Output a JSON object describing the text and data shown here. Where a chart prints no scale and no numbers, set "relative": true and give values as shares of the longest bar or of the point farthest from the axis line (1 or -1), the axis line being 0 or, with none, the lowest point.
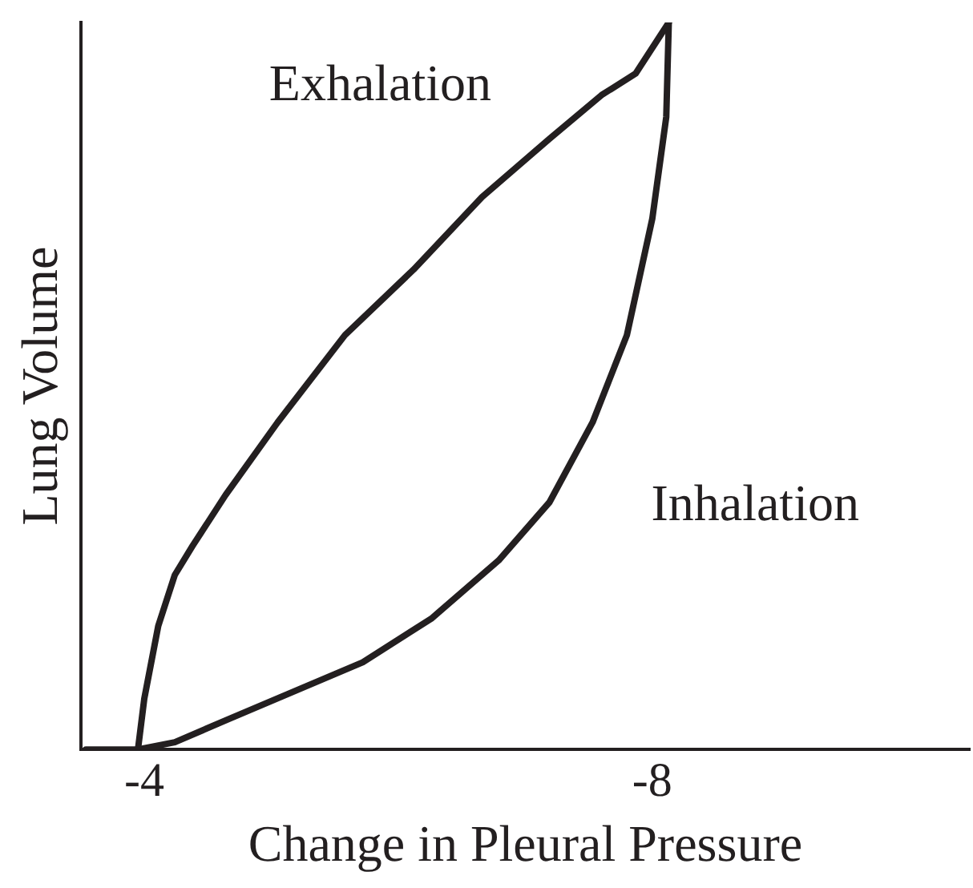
{
  "chart_data": {
    "type": "line",
    "xlabel": "Change in Pleural Pressure",
    "ylabel": "Lung Volume",
    "relative": true,
    "xlim": [
      -3.5,
      -10.5
    ],
    "xticks": [
      -4,
      -8
    ],
    "grid": false,
    "legend": false,
    "marker": "none",
    "line_style": "solid",
    "series": [
      {
        "name": "Exhalation",
        "color": "#231f20",
        "x": [
          -3.95,
          -4.0,
          -4.11,
          -4.24,
          -4.38,
          -4.64,
          -5.05,
          -5.58,
          -6.12,
          -6.66,
          -7.19,
          -7.6,
          -7.87,
          -8.13
        ],
        "values": [
          0,
          0.07,
          0.17,
          0.24,
          0.28,
          0.35,
          0.45,
          0.57,
          0.66,
          0.76,
          0.84,
          0.9,
          0.93,
          1
        ]
      },
      {
        "name": "Inhalation",
        "color": "#231f20",
        "x": [
          -3.54,
          -3.95,
          -4.24,
          -4.64,
          -5.18,
          -5.72,
          -6.26,
          -6.79,
          -7.19,
          -7.53,
          -7.8,
          -8.0,
          -8.11,
          -8.13
        ],
        "values": [
          0,
          0,
          0.01,
          0.04,
          0.08,
          0.12,
          0.18,
          0.26,
          0.34,
          0.45,
          0.57,
          0.73,
          0.87,
          1
        ]
      }
    ]
  }
}
